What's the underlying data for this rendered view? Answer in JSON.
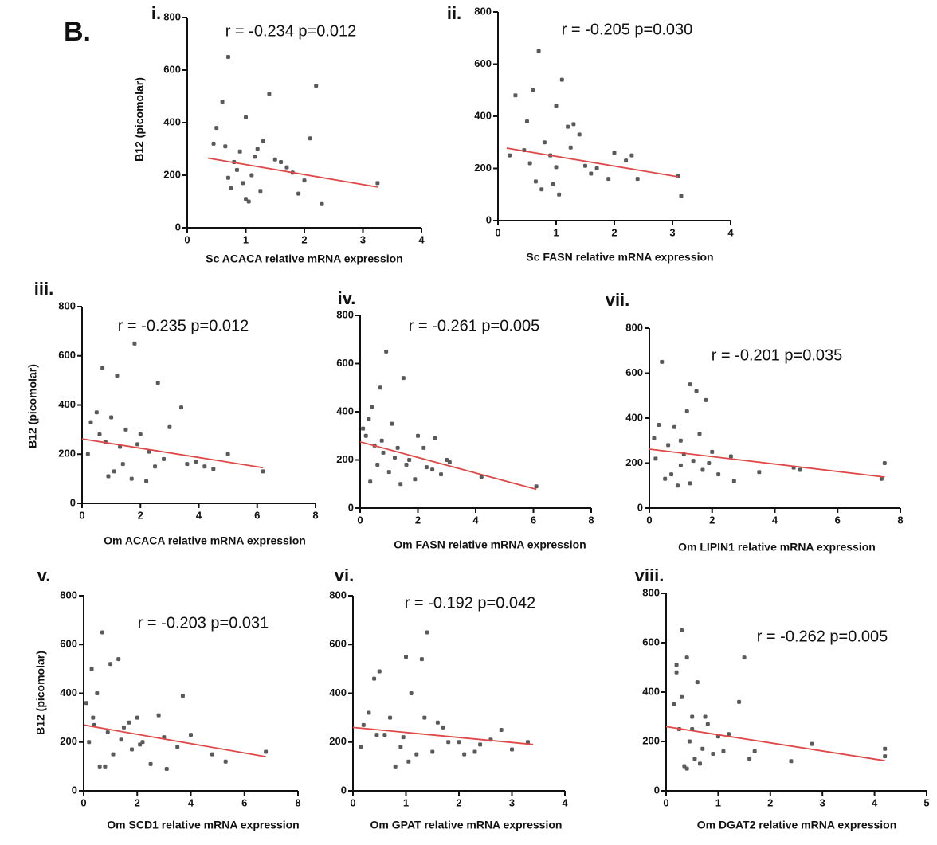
{
  "figure_label": "B.",
  "chart_data": [
    {
      "type": "scatter",
      "panel_label": "i.",
      "annotation": "r = -0.234  p=0.012",
      "xlabel": "Sc ACACA relative mRNA expression",
      "ylabel": "B12 (picomolar)",
      "xlim": [
        0,
        4
      ],
      "xticks": [
        0,
        1,
        2,
        3,
        4
      ],
      "ylim": [
        0,
        800
      ],
      "yticks": [
        0,
        200,
        400,
        600,
        800
      ],
      "color": "#5a5a5a",
      "line_color": "#e04848",
      "x": [
        0.7,
        1.0,
        1.4,
        2.2,
        0.5,
        0.9,
        1.2,
        0.8,
        1.1,
        0.6,
        1.5,
        1.7,
        2.0,
        2.1,
        1.9,
        0.75,
        1.05,
        1.3,
        0.85,
        0.95,
        1.6,
        2.3,
        3.25,
        0.65,
        1.25,
        1.8,
        0.45,
        1.0,
        1.15,
        0.7
      ],
      "values": [
        650,
        420,
        510,
        540,
        380,
        290,
        300,
        250,
        200,
        480,
        260,
        230,
        180,
        340,
        130,
        150,
        100,
        330,
        220,
        170,
        250,
        90,
        170,
        310,
        140,
        210,
        320,
        110,
        270,
        190
      ],
      "trend": {
        "x": [
          0.35,
          3.25
        ],
        "y": [
          265,
          155
        ]
      }
    },
    {
      "type": "scatter",
      "panel_label": "ii.",
      "annotation": "r = -0.205  p=0.030",
      "xlabel": "Sc FASN relative mRNA expression",
      "xlim": [
        0,
        4
      ],
      "xticks": [
        0,
        1,
        2,
        3,
        4
      ],
      "ylim": [
        0,
        800
      ],
      "yticks": [
        0,
        200,
        400,
        600,
        800
      ],
      "color": "#5a5a5a",
      "line_color": "#e04848",
      "x": [
        0.7,
        0.6,
        1.0,
        1.1,
        0.3,
        0.5,
        0.8,
        0.9,
        1.2,
        1.5,
        1.3,
        2.0,
        2.3,
        3.1,
        0.45,
        0.65,
        1.05,
        1.4,
        1.7,
        1.9,
        2.2,
        2.4,
        0.2,
        0.55,
        0.95,
        1.25,
        1.6,
        3.15,
        0.75,
        1.0
      ],
      "values": [
        650,
        500,
        440,
        540,
        480,
        380,
        300,
        250,
        360,
        210,
        370,
        260,
        250,
        170,
        270,
        150,
        100,
        330,
        200,
        160,
        230,
        160,
        250,
        220,
        140,
        280,
        180,
        95,
        120,
        205
      ],
      "trend": {
        "x": [
          0.15,
          3.1
        ],
        "y": [
          278,
          168
        ]
      }
    },
    {
      "type": "scatter",
      "panel_label": "iii.",
      "annotation": "r = -0.235  p=0.012",
      "xlabel": "Om ACACA relative mRNA expression",
      "ylabel": "B12 (picomolar)",
      "xlim": [
        0,
        8
      ],
      "xticks": [
        0,
        2,
        4,
        6,
        8
      ],
      "ylim": [
        0,
        800
      ],
      "yticks": [
        0,
        200,
        400,
        600,
        800
      ],
      "color": "#5a5a5a",
      "line_color": "#e04848",
      "x": [
        1.8,
        0.7,
        1.2,
        2.6,
        3.4,
        0.5,
        1.0,
        1.5,
        2.0,
        3.0,
        4.2,
        5.0,
        6.2,
        0.3,
        0.8,
        1.3,
        2.3,
        2.8,
        3.6,
        4.5,
        0.2,
        1.1,
        1.7,
        2.2,
        0.6,
        1.4,
        2.5,
        3.9,
        0.9,
        1.9
      ],
      "values": [
        650,
        550,
        520,
        490,
        390,
        370,
        350,
        300,
        280,
        310,
        150,
        200,
        130,
        330,
        250,
        230,
        210,
        180,
        160,
        140,
        200,
        130,
        100,
        90,
        280,
        160,
        150,
        170,
        110,
        240
      ],
      "trend": {
        "x": [
          0,
          6.2
        ],
        "y": [
          262,
          145
        ]
      }
    },
    {
      "type": "scatter",
      "panel_label": "iv.",
      "annotation": "r = -0.261  p=0.005",
      "xlabel": "Om FASN relative mRNA expression",
      "xlim": [
        0,
        8
      ],
      "xticks": [
        0,
        2,
        4,
        6,
        8
      ],
      "ylim": [
        0,
        800
      ],
      "yticks": [
        0,
        200,
        400,
        600,
        800
      ],
      "color": "#5a5a5a",
      "line_color": "#e04848",
      "x": [
        0.9,
        0.7,
        1.5,
        0.4,
        0.3,
        1.1,
        2.0,
        2.6,
        3.0,
        6.1,
        0.5,
        0.8,
        1.3,
        1.7,
        2.3,
        4.2,
        0.2,
        0.6,
        1.0,
        1.2,
        1.9,
        2.8,
        0.35,
        0.75,
        1.6,
        2.2,
        0.1,
        1.4,
        2.5,
        3.1
      ],
      "values": [
        650,
        500,
        540,
        420,
        370,
        350,
        300,
        290,
        200,
        90,
        260,
        230,
        250,
        200,
        170,
        130,
        300,
        180,
        150,
        210,
        120,
        140,
        110,
        280,
        180,
        250,
        330,
        100,
        160,
        190
      ],
      "trend": {
        "x": [
          0,
          6.1
        ],
        "y": [
          275,
          78
        ]
      }
    },
    {
      "type": "scatter",
      "panel_label": "vii.",
      "annotation": "r = -0.201  p=0.035",
      "xlabel": "Om LIPIN1 relative mRNA expression",
      "xlim": [
        0,
        8
      ],
      "xticks": [
        0,
        2,
        4,
        6,
        8
      ],
      "ylim": [
        0,
        800
      ],
      "yticks": [
        0,
        200,
        400,
        600,
        800
      ],
      "color": "#5a5a5a",
      "line_color": "#e04848",
      "x": [
        0.4,
        1.3,
        1.5,
        1.8,
        1.2,
        0.3,
        0.8,
        1.0,
        1.6,
        2.0,
        2.6,
        3.5,
        4.6,
        4.8,
        7.5,
        7.4,
        0.2,
        0.6,
        1.1,
        1.4,
        1.7,
        2.2,
        0.5,
        0.9,
        1.3,
        1.9,
        0.7,
        2.7,
        1.0,
        0.15
      ],
      "values": [
        650,
        550,
        520,
        480,
        430,
        370,
        360,
        300,
        330,
        250,
        230,
        160,
        180,
        170,
        200,
        130,
        220,
        280,
        240,
        210,
        170,
        150,
        130,
        100,
        110,
        200,
        150,
        120,
        190,
        310
      ],
      "trend": {
        "x": [
          0,
          7.5
        ],
        "y": [
          262,
          138
        ]
      }
    },
    {
      "type": "scatter",
      "panel_label": "v.",
      "annotation": "r = -0.203  p=0.031",
      "xlabel": "Om SCD1 relative mRNA expression",
      "ylabel": "B12 (picomolar)",
      "xlim": [
        0,
        8
      ],
      "xticks": [
        0,
        2,
        4,
        6,
        8
      ],
      "ylim": [
        0,
        800
      ],
      "yticks": [
        0,
        200,
        400,
        600,
        800
      ],
      "color": "#5a5a5a",
      "line_color": "#e04848",
      "x": [
        0.7,
        1.3,
        1.0,
        0.3,
        0.5,
        0.1,
        3.7,
        2.0,
        2.8,
        3.0,
        1.7,
        0.4,
        0.9,
        1.5,
        2.2,
        3.5,
        4.0,
        4.8,
        5.3,
        6.8,
        0.2,
        0.6,
        1.1,
        1.8,
        2.5,
        1.4,
        0.8,
        3.1,
        2.1,
        0.35
      ],
      "values": [
        650,
        540,
        520,
        500,
        400,
        360,
        390,
        300,
        310,
        220,
        280,
        270,
        240,
        260,
        200,
        180,
        230,
        150,
        120,
        160,
        200,
        100,
        150,
        170,
        110,
        210,
        100,
        90,
        190,
        300
      ],
      "trend": {
        "x": [
          0,
          6.8
        ],
        "y": [
          270,
          140
        ]
      }
    },
    {
      "type": "scatter",
      "panel_label": "vi.",
      "annotation": "r = -0.192  p=0.042",
      "xlabel": "Om GPAT relative mRNA expression",
      "xlim": [
        0,
        4
      ],
      "xticks": [
        0,
        1,
        2,
        3,
        4
      ],
      "ylim": [
        0,
        800
      ],
      "yticks": [
        0,
        200,
        400,
        600,
        800
      ],
      "color": "#5a5a5a",
      "line_color": "#e04848",
      "x": [
        1.4,
        1.0,
        1.3,
        0.5,
        0.4,
        0.3,
        0.7,
        1.1,
        1.6,
        2.0,
        2.6,
        2.8,
        3.3,
        0.2,
        0.6,
        0.9,
        1.2,
        1.5,
        1.8,
        2.3,
        0.15,
        0.8,
        1.05,
        1.7,
        2.4,
        3.0,
        0.45,
        1.35,
        2.1,
        0.95
      ],
      "values": [
        650,
        550,
        540,
        490,
        460,
        320,
        300,
        400,
        280,
        200,
        210,
        250,
        200,
        270,
        230,
        180,
        150,
        160,
        200,
        160,
        180,
        100,
        120,
        260,
        190,
        170,
        230,
        300,
        150,
        220
      ],
      "trend": {
        "x": [
          0,
          3.4
        ],
        "y": [
          260,
          190
        ]
      }
    },
    {
      "type": "scatter",
      "panel_label": "viii.",
      "annotation": "r = -0.262  p=0.005",
      "xlabel": "Om DGAT2 relative mRNA expression",
      "xlim": [
        0,
        5
      ],
      "xticks": [
        0,
        1,
        2,
        3,
        4,
        5
      ],
      "ylim": [
        0,
        800
      ],
      "yticks": [
        0,
        200,
        400,
        600,
        800
      ],
      "color": "#5a5a5a",
      "line_color": "#e04848",
      "x": [
        0.3,
        0.2,
        0.4,
        0.2,
        0.6,
        1.5,
        1.4,
        0.3,
        0.5,
        0.8,
        1.0,
        1.2,
        1.7,
        2.4,
        2.8,
        4.2,
        0.25,
        0.45,
        0.7,
        0.9,
        0.35,
        0.55,
        0.65,
        1.1,
        0.15,
        0.75,
        0.5,
        0.4,
        1.6,
        4.2
      ],
      "values": [
        650,
        510,
        540,
        480,
        440,
        540,
        360,
        380,
        300,
        270,
        220,
        230,
        160,
        120,
        190,
        170,
        250,
        200,
        170,
        150,
        100,
        130,
        110,
        160,
        350,
        300,
        250,
        90,
        130,
        140
      ],
      "trend": {
        "x": [
          0,
          4.2
        ],
        "y": [
          260,
          122
        ]
      }
    }
  ]
}
